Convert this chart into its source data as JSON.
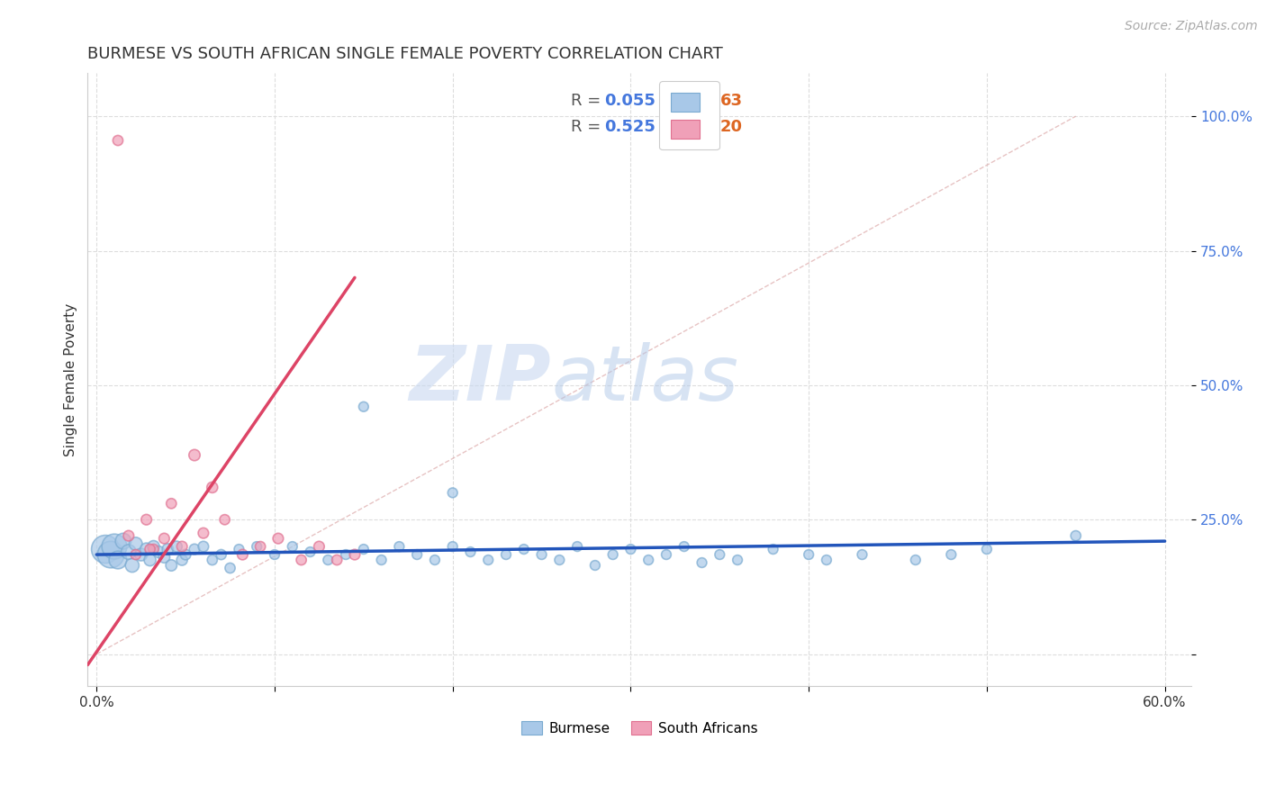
{
  "title": "BURMESE VS SOUTH AFRICAN SINGLE FEMALE POVERTY CORRELATION CHART",
  "source_text": "Source: ZipAtlas.com",
  "ylabel": "Single Female Poverty",
  "watermark_zip": "ZIP",
  "watermark_atlas": "atlas",
  "xlim": [
    -0.005,
    0.615
  ],
  "ylim": [
    -0.06,
    1.08
  ],
  "xticks": [
    0.0,
    0.1,
    0.2,
    0.3,
    0.4,
    0.5,
    0.6
  ],
  "xticklabels": [
    "0.0%",
    "",
    "",
    "",
    "",
    "",
    "60.0%"
  ],
  "ytick_positions": [
    0.0,
    0.25,
    0.5,
    0.75,
    1.0
  ],
  "ytick_labels": [
    "",
    "25.0%",
    "50.0%",
    "75.0%",
    "100.0%"
  ],
  "burmese_color": "#A8C8E8",
  "burmese_edge_color": "#7AAAD0",
  "sa_color": "#F0A0B8",
  "sa_edge_color": "#E07090",
  "title_color": "#333333",
  "title_fontsize": 13,
  "axis_label_color": "#333333",
  "legend_R_color": "#4477DD",
  "legend_N_color": "#DD6622",
  "grid_color": "#DDDDDD",
  "ytick_color": "#4477DD",
  "blue_trend_x": [
    0.0,
    0.6
  ],
  "blue_trend_y": [
    0.185,
    0.21
  ],
  "pink_trend_x": [
    -0.005,
    0.145
  ],
  "pink_trend_y": [
    -0.02,
    0.7
  ],
  "diag_line_x": [
    0.0,
    0.55
  ],
  "diag_line_y": [
    0.0,
    1.0
  ],
  "burmese_x": [
    0.005,
    0.008,
    0.01,
    0.012,
    0.015,
    0.018,
    0.02,
    0.022,
    0.025,
    0.028,
    0.03,
    0.032,
    0.035,
    0.038,
    0.04,
    0.042,
    0.045,
    0.048,
    0.05,
    0.055,
    0.06,
    0.065,
    0.07,
    0.075,
    0.08,
    0.09,
    0.1,
    0.11,
    0.12,
    0.13,
    0.14,
    0.15,
    0.16,
    0.17,
    0.18,
    0.19,
    0.2,
    0.21,
    0.22,
    0.23,
    0.24,
    0.25,
    0.26,
    0.27,
    0.28,
    0.29,
    0.3,
    0.31,
    0.32,
    0.33,
    0.35,
    0.36,
    0.38,
    0.4,
    0.41,
    0.43,
    0.46,
    0.48,
    0.5,
    0.34,
    0.15,
    0.2,
    0.55
  ],
  "burmese_y": [
    0.195,
    0.185,
    0.2,
    0.175,
    0.21,
    0.19,
    0.165,
    0.205,
    0.185,
    0.195,
    0.175,
    0.2,
    0.19,
    0.18,
    0.195,
    0.165,
    0.2,
    0.175,
    0.185,
    0.195,
    0.2,
    0.175,
    0.185,
    0.16,
    0.195,
    0.2,
    0.185,
    0.2,
    0.19,
    0.175,
    0.185,
    0.195,
    0.175,
    0.2,
    0.185,
    0.175,
    0.2,
    0.19,
    0.175,
    0.185,
    0.195,
    0.185,
    0.175,
    0.2,
    0.165,
    0.185,
    0.195,
    0.175,
    0.185,
    0.2,
    0.185,
    0.175,
    0.195,
    0.185,
    0.175,
    0.185,
    0.175,
    0.185,
    0.195,
    0.17,
    0.46,
    0.3,
    0.22
  ],
  "burmese_size": [
    500,
    450,
    400,
    200,
    160,
    140,
    120,
    110,
    100,
    100,
    90,
    90,
    85,
    80,
    80,
    80,
    75,
    75,
    70,
    70,
    70,
    65,
    65,
    65,
    60,
    60,
    60,
    60,
    60,
    60,
    60,
    60,
    60,
    60,
    60,
    60,
    60,
    60,
    60,
    60,
    60,
    60,
    60,
    60,
    60,
    60,
    60,
    60,
    60,
    60,
    60,
    60,
    60,
    60,
    60,
    60,
    60,
    60,
    60,
    60,
    60,
    60,
    65
  ],
  "sa_x": [
    0.012,
    0.018,
    0.022,
    0.028,
    0.032,
    0.038,
    0.042,
    0.048,
    0.055,
    0.065,
    0.072,
    0.082,
    0.092,
    0.102,
    0.115,
    0.125,
    0.135,
    0.145,
    0.03,
    0.06
  ],
  "sa_y": [
    0.955,
    0.22,
    0.185,
    0.25,
    0.195,
    0.215,
    0.28,
    0.2,
    0.37,
    0.31,
    0.25,
    0.185,
    0.2,
    0.215,
    0.175,
    0.2,
    0.175,
    0.185,
    0.195,
    0.225
  ],
  "sa_size": [
    65,
    70,
    65,
    70,
    65,
    70,
    65,
    70,
    80,
    75,
    65,
    70,
    65,
    70,
    65,
    70,
    65,
    70,
    65,
    70
  ]
}
